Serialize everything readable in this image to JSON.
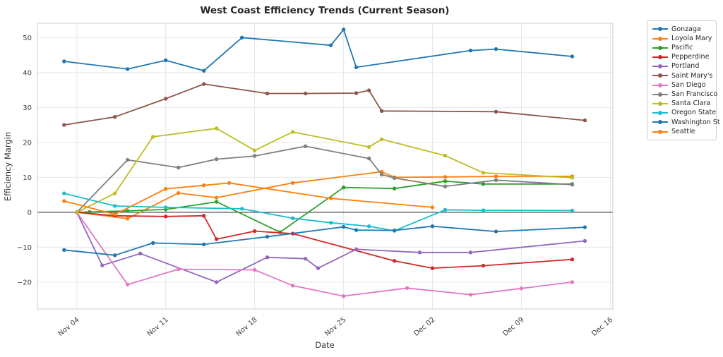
{
  "chart_data": {
    "type": "line",
    "title": "West Coast Efficiency Trends (Current Season)",
    "xlabel": "Date",
    "ylabel": "Efficiency Margin",
    "x_tick_labels": [
      "Nov 04",
      "Nov 11",
      "Nov 18",
      "Nov 25",
      "Dec 02",
      "Dec 09",
      "Dec 16"
    ],
    "y_ticks": [
      -20,
      -10,
      0,
      10,
      20,
      30,
      40,
      50
    ],
    "xlim_days": [
      0.9,
      46.2
    ],
    "ylim": [
      -27.7,
      54.1
    ],
    "zero_line": 0,
    "grid": true,
    "legend_position": "outside-right-top",
    "series": [
      {
        "name": "Gonzaga",
        "color": "#1f77b4",
        "points": [
          [
            "Nov 03",
            43.2
          ],
          [
            "Nov 08",
            41.0
          ],
          [
            "Nov 11",
            43.5
          ],
          [
            "Nov 14",
            40.5
          ],
          [
            "Nov 17",
            50.0
          ],
          [
            "Nov 24",
            47.8
          ],
          [
            "Nov 25",
            52.3
          ],
          [
            "Nov 26",
            41.5
          ],
          [
            "Dec 05",
            46.3
          ],
          [
            "Dec 07",
            46.7
          ],
          [
            "Dec 13",
            44.6
          ]
        ]
      },
      {
        "name": "Loyola Mary",
        "color": "#ff7f0e",
        "points": [
          [
            "Nov 04",
            0.0
          ],
          [
            "Nov 08",
            -1.8
          ],
          [
            "Nov 12",
            5.5
          ],
          [
            "Nov 15",
            4.2
          ],
          [
            "Nov 21",
            8.4
          ],
          [
            "Nov 28",
            11.6
          ],
          [
            "Nov 29",
            10.0
          ],
          [
            "Dec 03",
            10.1
          ],
          [
            "Dec 07",
            10.3
          ],
          [
            "Dec 13",
            10.3
          ]
        ]
      },
      {
        "name": "Pacific",
        "color": "#2ca02c",
        "points": [
          [
            "Nov 04",
            0.0
          ],
          [
            "Nov 05",
            0.1
          ],
          [
            "Nov 08",
            0.4
          ],
          [
            "Nov 11",
            0.8
          ],
          [
            "Nov 15",
            3.0
          ],
          [
            "Nov 20",
            -5.7
          ],
          [
            "Nov 25",
            7.1
          ],
          [
            "Nov 29",
            6.8
          ],
          [
            "Dec 03",
            8.9
          ],
          [
            "Dec 06",
            8.1
          ],
          [
            "Dec 13",
            8.1
          ]
        ]
      },
      {
        "name": "Pepperdine",
        "color": "#d62728",
        "points": [
          [
            "Nov 04",
            0.0
          ],
          [
            "Nov 07",
            -1.0
          ],
          [
            "Nov 11",
            -1.2
          ],
          [
            "Nov 14",
            -1.0
          ],
          [
            "Nov 15",
            -7.7
          ],
          [
            "Nov 18",
            -5.4
          ],
          [
            "Nov 21",
            -6.1
          ],
          [
            "Nov 29",
            -13.9
          ],
          [
            "Dec 02",
            -16.0
          ],
          [
            "Dec 06",
            -15.3
          ],
          [
            "Dec 13",
            -13.5
          ]
        ]
      },
      {
        "name": "Portland",
        "color": "#9467bd",
        "points": [
          [
            "Nov 04",
            0.0
          ],
          [
            "Nov 06",
            -15.2
          ],
          [
            "Nov 09",
            -11.8
          ],
          [
            "Nov 15",
            -20.0
          ],
          [
            "Nov 19",
            -12.9
          ],
          [
            "Nov 22",
            -13.3
          ],
          [
            "Nov 23",
            -16.0
          ],
          [
            "Nov 26",
            -10.6
          ],
          [
            "Dec 01",
            -11.5
          ],
          [
            "Dec 05",
            -11.5
          ],
          [
            "Dec 14",
            -8.2
          ]
        ]
      },
      {
        "name": "Saint Mary's",
        "color": "#8c564b",
        "points": [
          [
            "Nov 03",
            25.0
          ],
          [
            "Nov 07",
            27.3
          ],
          [
            "Nov 11",
            32.5
          ],
          [
            "Nov 14",
            36.7
          ],
          [
            "Nov 19",
            34.0
          ],
          [
            "Nov 22",
            34.0
          ],
          [
            "Nov 26",
            34.1
          ],
          [
            "Nov 27",
            34.9
          ],
          [
            "Nov 28",
            29.0
          ],
          [
            "Dec 07",
            28.8
          ],
          [
            "Dec 14",
            26.3
          ]
        ]
      },
      {
        "name": "San Diego",
        "color": "#e377c2",
        "points": [
          [
            "Nov 04",
            0.0
          ],
          [
            "Nov 08",
            -20.7
          ],
          [
            "Nov 12",
            -16.3
          ],
          [
            "Nov 18",
            -16.5
          ],
          [
            "Nov 21",
            -21.0
          ],
          [
            "Nov 25",
            -24.0
          ],
          [
            "Nov 30",
            -21.7
          ],
          [
            "Dec 05",
            -23.6
          ],
          [
            "Dec 09",
            -21.8
          ],
          [
            "Dec 13",
            -20.0
          ]
        ]
      },
      {
        "name": "San Francisco",
        "color": "#7f7f7f",
        "points": [
          [
            "Nov 04",
            0.0
          ],
          [
            "Nov 08",
            15.0
          ],
          [
            "Nov 12",
            12.8
          ],
          [
            "Nov 15",
            15.2
          ],
          [
            "Nov 18",
            16.1
          ],
          [
            "Nov 22",
            18.9
          ],
          [
            "Nov 27",
            15.4
          ],
          [
            "Nov 28",
            10.8
          ],
          [
            "Nov 29",
            9.8
          ],
          [
            "Dec 03",
            7.4
          ],
          [
            "Dec 07",
            9.2
          ],
          [
            "Dec 13",
            7.9
          ]
        ]
      },
      {
        "name": "Santa Clara",
        "color": "#bcbd22",
        "points": [
          [
            "Nov 04",
            0.0
          ],
          [
            "Nov 07",
            5.4
          ],
          [
            "Nov 10",
            21.6
          ],
          [
            "Nov 15",
            24.0
          ],
          [
            "Nov 18",
            17.7
          ],
          [
            "Nov 21",
            23.0
          ],
          [
            "Nov 27",
            18.7
          ],
          [
            "Nov 28",
            20.9
          ],
          [
            "Dec 03",
            16.2
          ],
          [
            "Dec 06",
            11.3
          ],
          [
            "Dec 13",
            9.9
          ]
        ]
      },
      {
        "name": "Oregon State",
        "color": "#17becf",
        "points": [
          [
            "Nov 03",
            5.4
          ],
          [
            "Nov 07",
            1.8
          ],
          [
            "Nov 11",
            1.4
          ],
          [
            "Nov 17",
            1.0
          ],
          [
            "Nov 21",
            -1.7
          ],
          [
            "Nov 24",
            -3.0
          ],
          [
            "Nov 27",
            -4.0
          ],
          [
            "Nov 29",
            -5.3
          ],
          [
            "Dec 03",
            0.7
          ],
          [
            "Dec 06",
            0.55
          ],
          [
            "Dec 13",
            0.5
          ]
        ]
      },
      {
        "name": "Washington St",
        "color": "#1f77b4",
        "points": [
          [
            "Nov 03",
            -10.8
          ],
          [
            "Nov 07",
            -12.3
          ],
          [
            "Nov 10",
            -8.8
          ],
          [
            "Nov 14",
            -9.2
          ],
          [
            "Nov 19",
            -7.0
          ],
          [
            "Nov 25",
            -4.2
          ],
          [
            "Nov 26",
            -5.1
          ],
          [
            "Nov 29",
            -5.2
          ],
          [
            "Dec 02",
            -4.0
          ],
          [
            "Dec 07",
            -5.5
          ],
          [
            "Dec 14",
            -4.3
          ]
        ]
      },
      {
        "name": "Seattle",
        "color": "#ff7f0e",
        "points": [
          [
            "Nov 03",
            3.2
          ],
          [
            "Nov 07",
            -0.6
          ],
          [
            "Nov 11",
            6.7
          ],
          [
            "Nov 14",
            7.7
          ],
          [
            "Nov 16",
            8.4
          ],
          [
            "Nov 24",
            4.0
          ],
          [
            "Dec 02",
            1.4
          ]
        ]
      }
    ]
  },
  "style_colors": {
    "grid": "#e7e7e7",
    "spine": "#cccccc",
    "zero_line": "#4d4d4d",
    "background": "#ffffff"
  }
}
